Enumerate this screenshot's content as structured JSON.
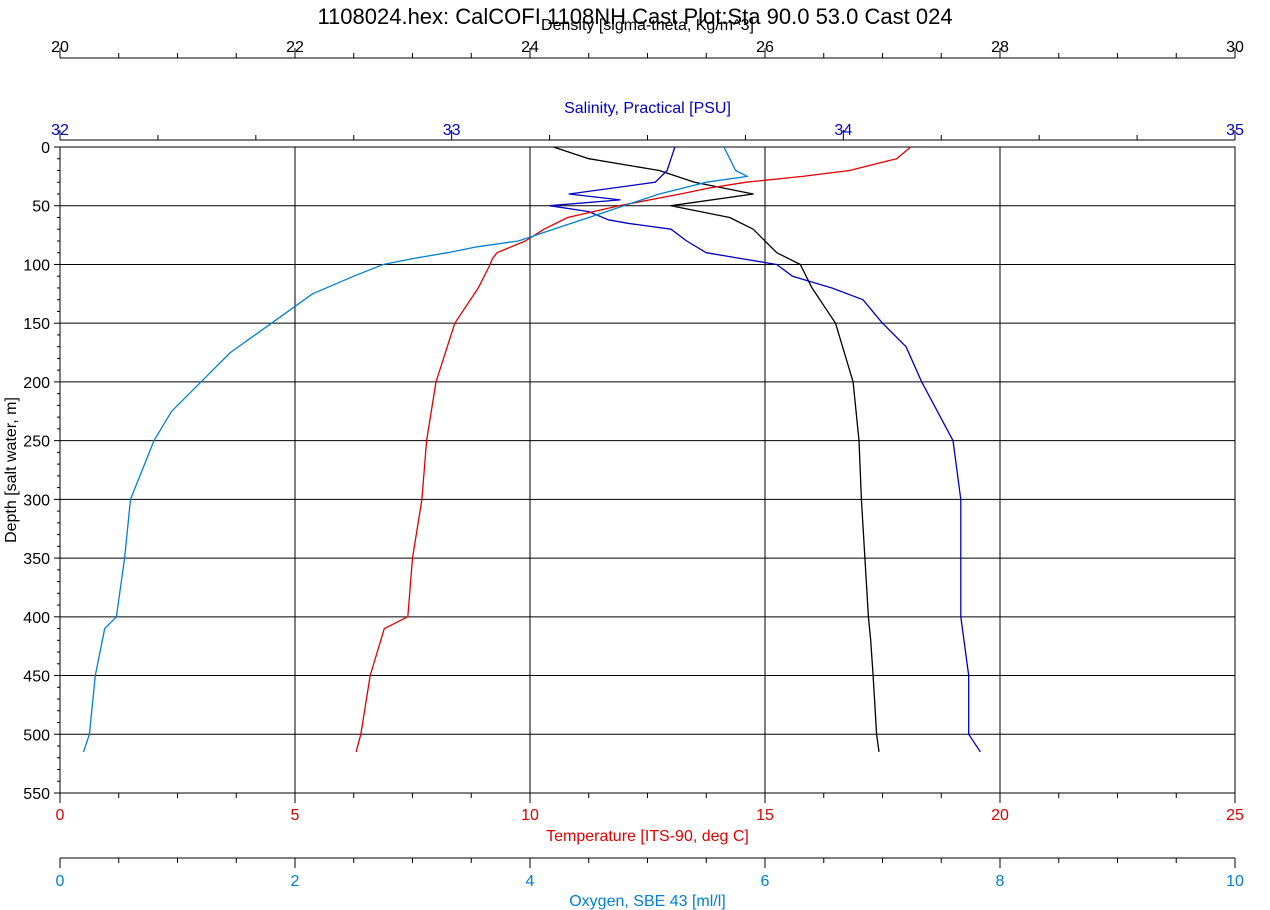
{
  "chart_data": {
    "type": "line",
    "title": "1108024.hex: CalCOFI 1108NH Cast Plot:Sta 90.0 53.0 Cast 024",
    "ylabel": "Depth [salt water, m]",
    "ylim": [
      550,
      0
    ],
    "yticks": [
      0,
      50,
      100,
      150,
      200,
      250,
      300,
      350,
      400,
      450,
      500,
      550
    ],
    "grid": true,
    "axes": [
      {
        "id": "density",
        "position": "top-outer",
        "label": "Density [sigma-theta, Kg/m^3]",
        "range": [
          20,
          30
        ],
        "ticks": [
          20,
          22,
          24,
          26,
          28,
          30
        ],
        "color": "#000000"
      },
      {
        "id": "salinity",
        "position": "top-inner",
        "label": "Salinity, Practical [PSU]",
        "range": [
          32,
          35
        ],
        "ticks": [
          32,
          33,
          34,
          35
        ],
        "color": "#0000c0"
      },
      {
        "id": "temperature",
        "position": "bottom-inner",
        "label": "Temperature [ITS-90, deg C]",
        "range": [
          0,
          25
        ],
        "ticks": [
          0,
          5,
          10,
          15,
          20,
          25
        ],
        "color": "#e00000"
      },
      {
        "id": "oxygen",
        "position": "bottom-outer",
        "label": "Oxygen, SBE 43 [ml/l]",
        "range": [
          0,
          10
        ],
        "ticks": [
          0,
          2,
          4,
          6,
          8,
          10
        ],
        "color": "#0080d0"
      }
    ],
    "series": [
      {
        "axis": "density",
        "color": "#000000",
        "depth": [
          0,
          10,
          20,
          30,
          40,
          50,
          60,
          70,
          80,
          90,
          95,
          100,
          120,
          150,
          200,
          250,
          300,
          350,
          400,
          420,
          450,
          500,
          515
        ],
        "values": [
          24.2,
          24.5,
          25.1,
          25.4,
          25.9,
          25.2,
          25.7,
          25.9,
          26.0,
          26.1,
          26.2,
          26.3,
          26.4,
          26.6,
          26.75,
          26.8,
          26.82,
          26.85,
          26.88,
          26.9,
          26.92,
          26.95,
          26.97
        ]
      },
      {
        "axis": "salinity",
        "color": "#0000c0",
        "depth": [
          0,
          10,
          20,
          30,
          40,
          45,
          50,
          55,
          62,
          65,
          70,
          80,
          90,
          95,
          100,
          110,
          120,
          130,
          150,
          170,
          200,
          250,
          300,
          350,
          400,
          450,
          500,
          515
        ],
        "values": [
          33.57,
          33.56,
          33.55,
          33.52,
          33.3,
          33.43,
          33.25,
          33.35,
          33.4,
          33.45,
          33.56,
          33.6,
          33.65,
          33.74,
          33.83,
          33.87,
          33.97,
          34.05,
          34.1,
          34.16,
          34.2,
          34.28,
          34.3,
          34.3,
          34.3,
          34.32,
          34.32,
          34.35
        ]
      },
      {
        "axis": "temperature",
        "color": "#e00000",
        "depth": [
          0,
          10,
          20,
          25,
          30,
          35,
          40,
          50,
          60,
          70,
          80,
          90,
          95,
          100,
          120,
          150,
          200,
          250,
          300,
          350,
          400,
          410,
          450,
          500,
          515
        ],
        "values": [
          18.1,
          17.8,
          16.8,
          15.8,
          14.6,
          13.8,
          13.2,
          11.9,
          10.8,
          10.3,
          9.9,
          9.3,
          9.2,
          9.15,
          8.9,
          8.4,
          8.0,
          7.8,
          7.7,
          7.5,
          7.4,
          6.9,
          6.6,
          6.4,
          6.3
        ]
      },
      {
        "axis": "oxygen",
        "color": "#0080d0",
        "depth": [
          0,
          10,
          20,
          25,
          30,
          40,
          50,
          60,
          70,
          80,
          85,
          90,
          95,
          100,
          110,
          125,
          150,
          175,
          200,
          225,
          250,
          300,
          350,
          400,
          410,
          450,
          500,
          515
        ],
        "values": [
          5.65,
          5.7,
          5.75,
          5.85,
          5.5,
          5.1,
          4.8,
          4.5,
          4.2,
          3.9,
          3.55,
          3.3,
          3.0,
          2.75,
          2.5,
          2.15,
          1.8,
          1.45,
          1.2,
          0.95,
          0.8,
          0.6,
          0.55,
          0.48,
          0.38,
          0.3,
          0.25,
          0.2
        ]
      }
    ]
  }
}
